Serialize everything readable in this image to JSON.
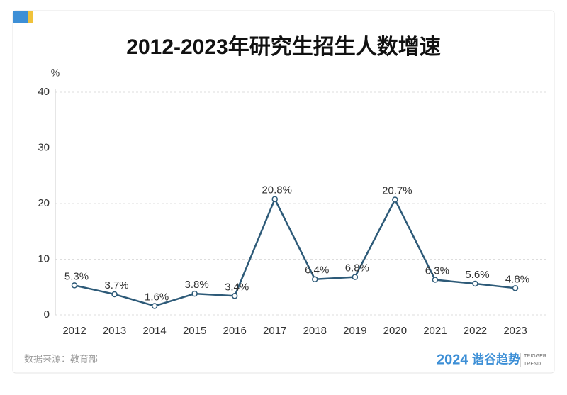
{
  "chart_data": {
    "type": "line",
    "title": "2012-2023年研究生招生人数增速",
    "y_label": "%",
    "categories": [
      "2012",
      "2013",
      "2014",
      "2015",
      "2016",
      "2017",
      "2018",
      "2019",
      "2020",
      "2021",
      "2022",
      "2023"
    ],
    "values": [
      5.3,
      3.7,
      1.6,
      3.8,
      3.4,
      20.8,
      6.4,
      6.8,
      20.7,
      6.3,
      5.6,
      4.8
    ],
    "value_labels": [
      "5.3%",
      "3.7%",
      "1.6%",
      "3.8%",
      "3.4%",
      "20.8%",
      "6.4%",
      "6.8%",
      "20.7%",
      "6.3%",
      "5.6%",
      "4.8%"
    ],
    "color": "#2d5a78",
    "ylim": [
      0,
      40
    ],
    "yticks": [
      0,
      10,
      20,
      30,
      40
    ],
    "grid": true
  },
  "footer": {
    "source": "数据来源：教育部",
    "logo_year": "2024",
    "logo_name": "谐谷趋势",
    "logo_en_1": "TRIGGER",
    "logo_en_2": "TREND"
  }
}
